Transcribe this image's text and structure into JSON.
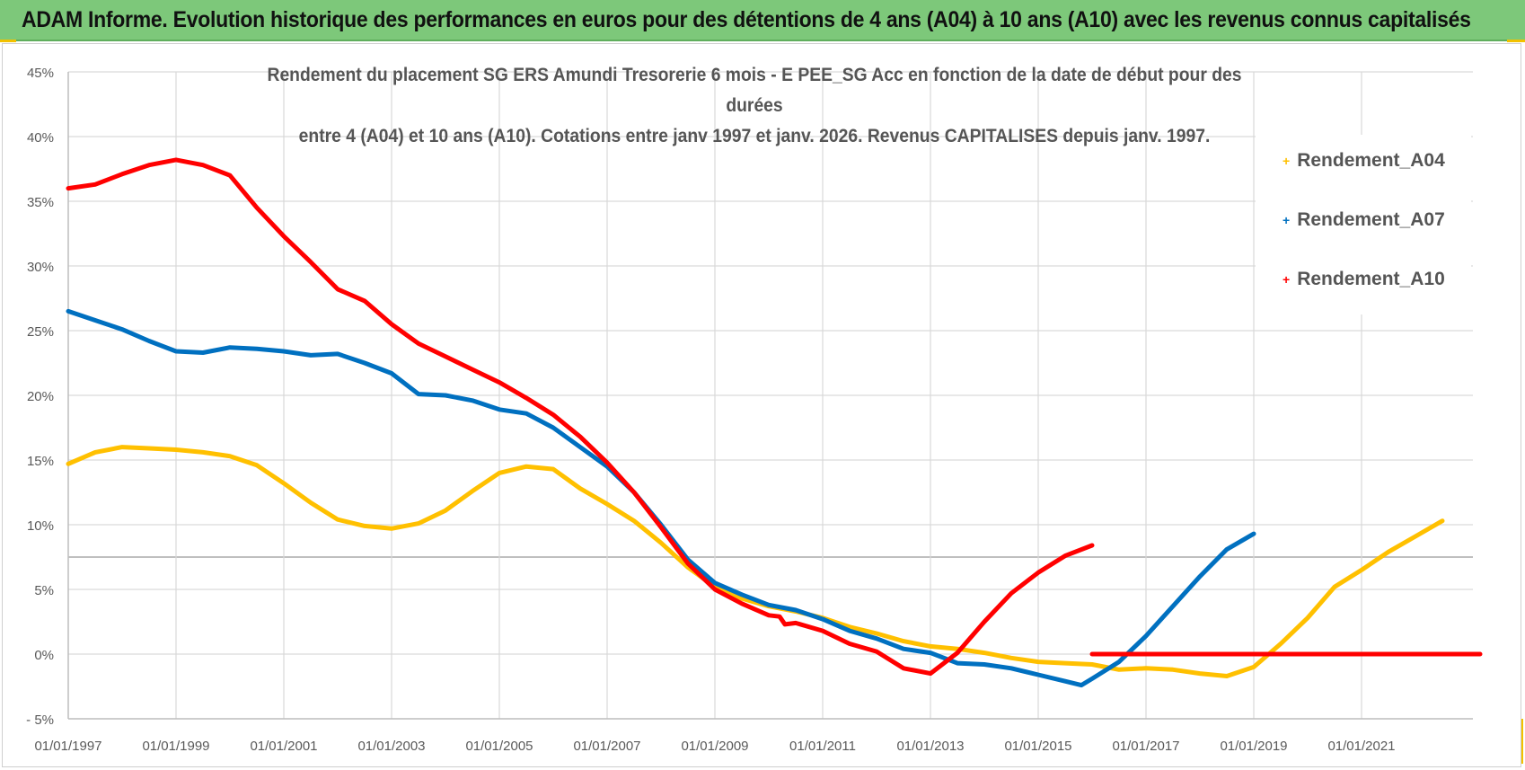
{
  "banner": {
    "title": "ADAM Informe. Evolution historique des performances en euros pour des détentions de 4 ans (A04) à 10 ans (A10) avec les revenus connus capitalisés"
  },
  "colors": {
    "banner_bg": "#7dc87a",
    "corner_accent": "#f2c100",
    "series_A04": "#ffc000",
    "series_A07": "#0070c0",
    "series_A10": "#ff0000",
    "gridline": "#d9d9d9",
    "axis_text": "#595959"
  },
  "chart_data": {
    "type": "line",
    "title_line1": "Rendement du placement SG ERS Amundi Tresorerie 6 mois - E PEE_SG Acc en fonction de la date de début pour des durées",
    "title_line2": "entre 4 (A04) et 10 ans (A10). Cotations entre janv 1997 et janv. 2026. Revenus CAPITALISES depuis janv. 1997.",
    "xlabel": "",
    "ylabel": "",
    "x_tick_labels": [
      "01/01/1997",
      "01/01/1999",
      "01/01/2001",
      "01/01/2003",
      "01/01/2005",
      "01/01/2007",
      "01/01/2009",
      "01/01/2011",
      "01/01/2013",
      "01/01/2015",
      "01/01/2017",
      "01/01/2019",
      "01/01/2021"
    ],
    "x_range": [
      1997.0,
      2023.2
    ],
    "y_tick_labels": [
      "- 5%",
      "0%",
      "5%",
      "10%",
      "15%",
      "20%",
      "25%",
      "30%",
      "35%",
      "40%",
      "45%"
    ],
    "y_ticks": [
      -5,
      0,
      5,
      10,
      15,
      20,
      25,
      30,
      35,
      40,
      45
    ],
    "ylim": [
      -5,
      45
    ],
    "grid": true,
    "legend_position": "right",
    "series": [
      {
        "name": "Rendement_A04",
        "color": "#ffc000",
        "points": [
          [
            1997.0,
            14.7
          ],
          [
            1997.5,
            15.6
          ],
          [
            1998.0,
            16.0
          ],
          [
            1998.5,
            15.9
          ],
          [
            1999.0,
            15.8
          ],
          [
            1999.5,
            15.6
          ],
          [
            2000.0,
            15.3
          ],
          [
            2000.5,
            14.6
          ],
          [
            2001.0,
            13.2
          ],
          [
            2001.5,
            11.7
          ],
          [
            2002.0,
            10.4
          ],
          [
            2002.5,
            9.9
          ],
          [
            2003.0,
            9.7
          ],
          [
            2003.5,
            10.1
          ],
          [
            2004.0,
            11.1
          ],
          [
            2004.5,
            12.6
          ],
          [
            2005.0,
            14.0
          ],
          [
            2005.5,
            14.5
          ],
          [
            2006.0,
            14.3
          ],
          [
            2006.5,
            12.8
          ],
          [
            2007.0,
            11.6
          ],
          [
            2007.5,
            10.3
          ],
          [
            2008.0,
            8.6
          ],
          [
            2008.5,
            6.7
          ],
          [
            2009.0,
            5.2
          ],
          [
            2009.5,
            4.3
          ],
          [
            2010.0,
            3.7
          ],
          [
            2010.5,
            3.3
          ],
          [
            2011.0,
            2.8
          ],
          [
            2011.5,
            2.1
          ],
          [
            2012.0,
            1.6
          ],
          [
            2012.5,
            1.0
          ],
          [
            2013.0,
            0.6
          ],
          [
            2013.5,
            0.4
          ],
          [
            2014.0,
            0.1
          ],
          [
            2014.5,
            -0.3
          ],
          [
            2015.0,
            -0.6
          ],
          [
            2015.5,
            -0.7
          ],
          [
            2016.0,
            -0.8
          ],
          [
            2016.5,
            -1.2
          ],
          [
            2017.0,
            -1.1
          ],
          [
            2017.5,
            -1.2
          ],
          [
            2018.0,
            -1.5
          ],
          [
            2018.5,
            -1.7
          ],
          [
            2019.0,
            -1.0
          ],
          [
            2019.5,
            0.8
          ],
          [
            2020.0,
            2.8
          ],
          [
            2020.5,
            5.2
          ],
          [
            2021.0,
            6.5
          ],
          [
            2021.5,
            7.9
          ],
          [
            2022.0,
            9.1
          ],
          [
            2022.5,
            10.3
          ]
        ]
      },
      {
        "name": "Rendement_A07",
        "color": "#0070c0",
        "points": [
          [
            1997.0,
            26.5
          ],
          [
            1997.5,
            25.8
          ],
          [
            1998.0,
            25.1
          ],
          [
            1998.5,
            24.2
          ],
          [
            1999.0,
            23.4
          ],
          [
            1999.5,
            23.3
          ],
          [
            2000.0,
            23.7
          ],
          [
            2000.5,
            23.6
          ],
          [
            2001.0,
            23.4
          ],
          [
            2001.5,
            23.1
          ],
          [
            2002.0,
            23.2
          ],
          [
            2002.5,
            22.5
          ],
          [
            2003.0,
            21.7
          ],
          [
            2003.5,
            20.1
          ],
          [
            2004.0,
            20.0
          ],
          [
            2004.5,
            19.6
          ],
          [
            2005.0,
            18.9
          ],
          [
            2005.5,
            18.6
          ],
          [
            2006.0,
            17.5
          ],
          [
            2006.5,
            16.0
          ],
          [
            2007.0,
            14.5
          ],
          [
            2007.5,
            12.5
          ],
          [
            2008.0,
            10.0
          ],
          [
            2008.5,
            7.3
          ],
          [
            2009.0,
            5.5
          ],
          [
            2009.5,
            4.6
          ],
          [
            2010.0,
            3.8
          ],
          [
            2010.5,
            3.4
          ],
          [
            2011.0,
            2.7
          ],
          [
            2011.5,
            1.8
          ],
          [
            2012.0,
            1.2
          ],
          [
            2012.5,
            0.4
          ],
          [
            2013.0,
            0.1
          ],
          [
            2013.5,
            -0.7
          ],
          [
            2014.0,
            -0.8
          ],
          [
            2014.5,
            -1.1
          ],
          [
            2015.0,
            -1.6
          ],
          [
            2015.5,
            -2.1
          ],
          [
            2015.8,
            -2.4
          ],
          [
            2016.0,
            -1.9
          ],
          [
            2016.5,
            -0.6
          ],
          [
            2017.0,
            1.4
          ],
          [
            2017.5,
            3.7
          ],
          [
            2018.0,
            6.0
          ],
          [
            2018.5,
            8.1
          ],
          [
            2019.0,
            9.3
          ]
        ]
      },
      {
        "name": "Rendement_A10",
        "color": "#ff0000",
        "points": [
          [
            1997.0,
            36.0
          ],
          [
            1997.5,
            36.3
          ],
          [
            1998.0,
            37.1
          ],
          [
            1998.5,
            37.8
          ],
          [
            1999.0,
            38.2
          ],
          [
            1999.5,
            37.8
          ],
          [
            2000.0,
            37.0
          ],
          [
            2000.5,
            34.5
          ],
          [
            2001.0,
            32.3
          ],
          [
            2001.5,
            30.3
          ],
          [
            2002.0,
            28.2
          ],
          [
            2002.5,
            27.3
          ],
          [
            2003.0,
            25.5
          ],
          [
            2003.5,
            24.0
          ],
          [
            2004.0,
            23.0
          ],
          [
            2004.5,
            22.0
          ],
          [
            2005.0,
            21.0
          ],
          [
            2005.5,
            19.8
          ],
          [
            2006.0,
            18.5
          ],
          [
            2006.5,
            16.8
          ],
          [
            2007.0,
            14.8
          ],
          [
            2007.5,
            12.5
          ],
          [
            2008.0,
            9.8
          ],
          [
            2008.5,
            7.0
          ],
          [
            2009.0,
            5.0
          ],
          [
            2009.5,
            3.9
          ],
          [
            2010.0,
            3.0
          ],
          [
            2010.2,
            2.9
          ],
          [
            2010.3,
            2.3
          ],
          [
            2010.5,
            2.4
          ],
          [
            2011.0,
            1.8
          ],
          [
            2011.5,
            0.8
          ],
          [
            2012.0,
            0.2
          ],
          [
            2012.5,
            -1.1
          ],
          [
            2013.0,
            -1.5
          ],
          [
            2013.5,
            0.1
          ],
          [
            2014.0,
            2.5
          ],
          [
            2014.5,
            4.7
          ],
          [
            2015.0,
            6.3
          ],
          [
            2015.5,
            7.6
          ],
          [
            2016.0,
            8.4
          ]
        ]
      },
      {
        "name": "Rendement_A10_zero",
        "color": "#ff0000",
        "legend": false,
        "points": [
          [
            2016.0,
            0.0
          ],
          [
            2023.2,
            0.0
          ]
        ]
      }
    ],
    "legend": [
      "Rendement_A04",
      "Rendement_A07",
      "Rendement_A10"
    ]
  }
}
